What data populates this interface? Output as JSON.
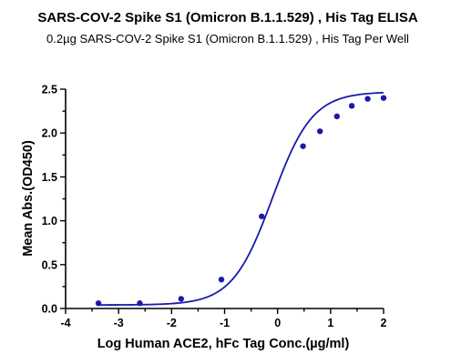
{
  "chart_data": {
    "type": "scatter",
    "title": "SARS-COV-2 Spike S1 (Omicron B.1.1.529) , His Tag ELISA",
    "subtitle": "0.2µg SARS-COV-2 Spike S1 (Omicron B.1.1.529) , His Tag Per Well",
    "xlabel": "Log Human ACE2, hFc Tag Conc.(µg/ml)",
    "ylabel": "Mean Abs.(OD450)",
    "xlim": [
      -4,
      2
    ],
    "ylim": [
      0.0,
      2.5
    ],
    "x_ticks": [
      "-4",
      "-3",
      "-2",
      "-1",
      "0",
      "1",
      "2"
    ],
    "y_ticks": [
      "0.0",
      "0.5",
      "1.0",
      "1.5",
      "2.0",
      "2.5"
    ],
    "grid": false,
    "colors": {
      "points": "#1a1aa8",
      "curve": "#1a1aa8",
      "axes": "#000000"
    },
    "series": [
      {
        "x": [
          -3.38,
          -2.6,
          -1.82,
          -1.06,
          -0.3,
          0.48,
          0.8,
          1.12,
          1.4,
          1.7,
          2.0
        ],
        "y": [
          0.06,
          0.06,
          0.11,
          0.33,
          1.05,
          1.85,
          2.02,
          2.19,
          2.31,
          2.39,
          2.4
        ]
      }
    ],
    "fit_curve": {
      "model": "4PL",
      "bottom": 0.04,
      "top": 2.47,
      "log_ec50": -0.1,
      "hill_slope": 1.15
    }
  }
}
